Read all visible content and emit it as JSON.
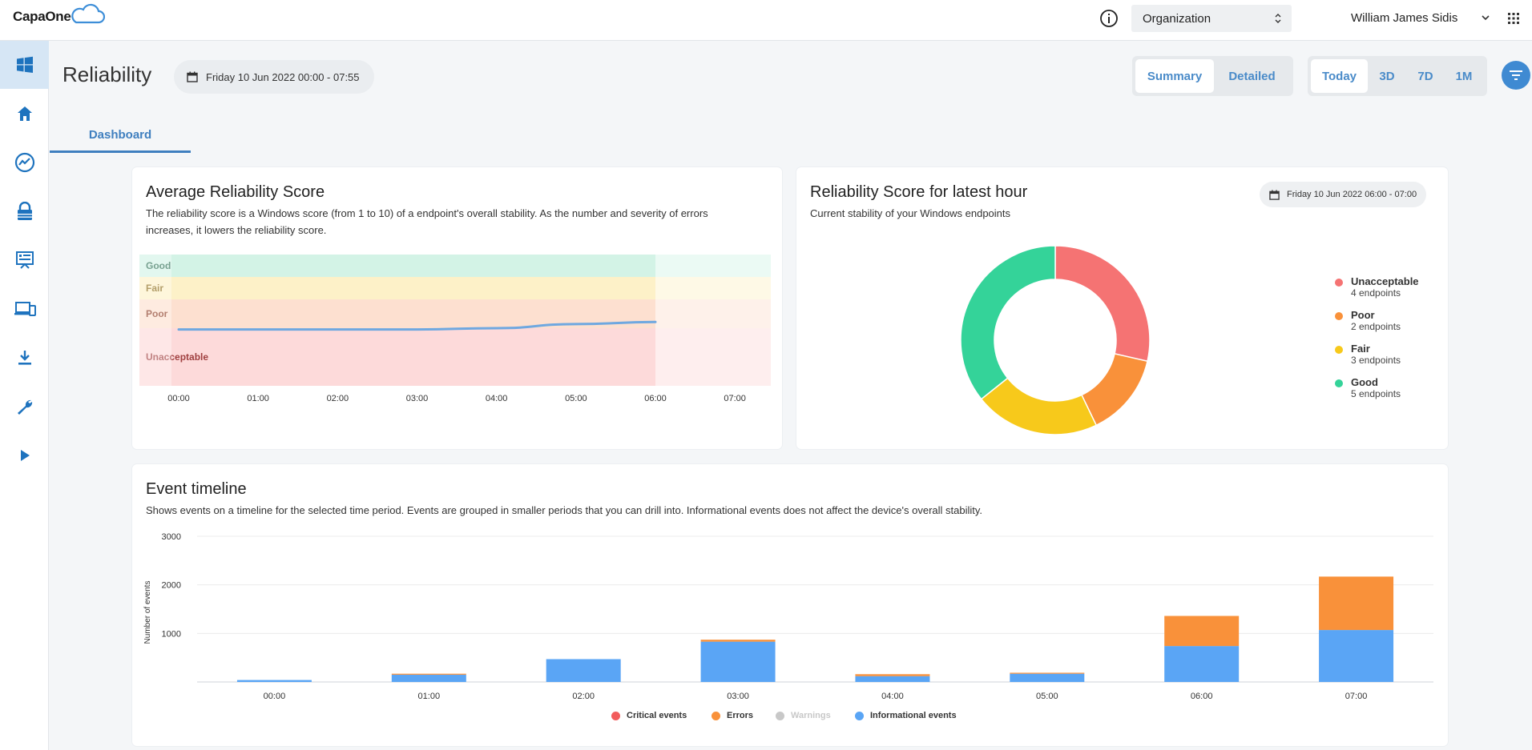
{
  "app": {
    "logo_text": "CapaOne"
  },
  "topbar": {
    "org_select": "Organization",
    "user_name": "William James Sidis"
  },
  "sidebar": {
    "items": [
      {
        "icon": "windows-icon",
        "active": true
      },
      {
        "icon": "home-icon"
      },
      {
        "icon": "reliability-icon"
      },
      {
        "icon": "lock-icon"
      },
      {
        "icon": "dashboard-icon"
      },
      {
        "icon": "devices-icon"
      },
      {
        "icon": "download-icon"
      },
      {
        "icon": "wrench-icon"
      },
      {
        "icon": "play-icon"
      }
    ]
  },
  "header": {
    "title": "Reliability",
    "date_range": "Friday 10 Jun 2022 00:00 - 07:55",
    "view_toggle": [
      "Summary",
      "Detailed"
    ],
    "view_selected": "Summary",
    "period_toggle": [
      "Today",
      "3D",
      "7D",
      "1M"
    ],
    "period_selected": "Today"
  },
  "tabs": [
    {
      "label": "Dashboard",
      "active": true
    }
  ],
  "avg_card": {
    "title": "Average Reliability Score",
    "desc": "The reliability score is a Windows score (from 1 to 10) of a endpoint's overall stability. As the number and severity of errors increases, it lowers the reliability score.",
    "bands": [
      "Good",
      "Fair",
      "Poor",
      "Unacceptable"
    ]
  },
  "latest_card": {
    "title": "Reliability Score for latest hour",
    "desc": "Current stability of your Windows endpoints",
    "date": "Friday 10 Jun 2022 06:00 - 07:00",
    "legend": [
      {
        "name": "Unacceptable",
        "sub": "4 endpoints",
        "color": "#f57373"
      },
      {
        "name": "Poor",
        "sub": "2 endpoints",
        "color": "#f9913a"
      },
      {
        "name": "Fair",
        "sub": "3 endpoints",
        "color": "#f7c91b"
      },
      {
        "name": "Good",
        "sub": "5 endpoints",
        "color": "#34d399"
      }
    ]
  },
  "timeline_card": {
    "title": "Event timeline",
    "desc": "Shows events on a timeline for the selected time period. Events are grouped in smaller periods that you can drill into. Informational events does not affect the device's overall stability.",
    "legend": [
      {
        "name": "Critical events",
        "color": "#f25c5c"
      },
      {
        "name": "Errors",
        "color": "#f9913a"
      },
      {
        "name": "Warnings",
        "color": "#c8c8c8",
        "disabled": true
      },
      {
        "name": "Informational events",
        "color": "#5aa5f5"
      }
    ]
  },
  "chart_data": [
    {
      "type": "line",
      "title": "Average Reliability Score",
      "x": [
        "00:00",
        "01:00",
        "02:00",
        "03:00",
        "04:00",
        "05:00",
        "06:00"
      ],
      "x_ticks": [
        "00:00",
        "01:00",
        "02:00",
        "03:00",
        "04:00",
        "05:00",
        "06:00",
        "07:00"
      ],
      "bands": [
        {
          "name": "Good",
          "color": "#d3f3e6"
        },
        {
          "name": "Fair",
          "color": "#fdf1c8"
        },
        {
          "name": "Poor",
          "color": "#fde0d0"
        },
        {
          "name": "Unacceptable",
          "color": "#fddada"
        }
      ],
      "series": [
        {
          "values": [
            4.5,
            4.5,
            4.5,
            4.5,
            4.6,
            4.8,
            4.9
          ]
        }
      ],
      "ylim": [
        0,
        10
      ]
    },
    {
      "type": "pie",
      "title": "Reliability Score for latest hour",
      "labels": [
        "Unacceptable",
        "Poor",
        "Fair",
        "Good"
      ],
      "values": [
        4,
        2,
        3,
        5
      ],
      "colors": [
        "#f57373",
        "#f9913a",
        "#f7c91b",
        "#34d399"
      ]
    },
    {
      "type": "bar",
      "title": "Event timeline",
      "ylabel": "Number of events",
      "ylim": [
        0,
        3000
      ],
      "y_ticks": [
        1000,
        2000,
        3000
      ],
      "categories": [
        "00:00",
        "01:00",
        "02:00",
        "03:00",
        "04:00",
        "05:00",
        "06:00",
        "07:00"
      ],
      "series": [
        {
          "name": "Critical events",
          "color": "#f25c5c",
          "values": [
            0,
            0,
            0,
            0,
            0,
            0,
            0,
            0
          ]
        },
        {
          "name": "Errors",
          "color": "#f9913a",
          "values": [
            0,
            20,
            0,
            40,
            40,
            20,
            620,
            1100
          ]
        },
        {
          "name": "Warnings",
          "color": "#c8c8c8",
          "values": [
            0,
            0,
            0,
            0,
            0,
            0,
            0,
            0
          ]
        },
        {
          "name": "Informational events",
          "color": "#5aa5f5",
          "values": [
            40,
            150,
            470,
            830,
            120,
            170,
            740,
            1070
          ]
        }
      ]
    }
  ]
}
